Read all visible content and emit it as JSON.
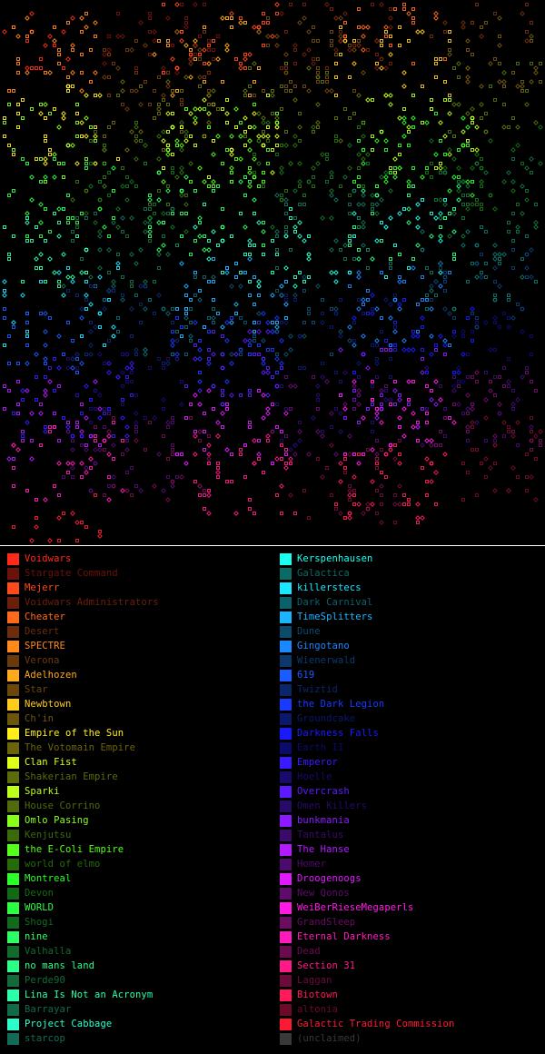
{
  "map": {
    "background": "#000000"
  },
  "legend": {
    "left": [
      {
        "label": "Voidwars",
        "color": "#ff2a1a",
        "dim": false
      },
      {
        "label": "Stargate Command",
        "color": "#ff2a1a",
        "dim": true
      },
      {
        "label": "Mejerr",
        "color": "#ff4a1a",
        "dim": false
      },
      {
        "label": "Voidwars Administrators",
        "color": "#ff4a1a",
        "dim": true
      },
      {
        "label": "Cheater",
        "color": "#ff6a1a",
        "dim": false
      },
      {
        "label": "Desert",
        "color": "#ff6a1a",
        "dim": true
      },
      {
        "label": "SPECTRE",
        "color": "#ff8a1a",
        "dim": false
      },
      {
        "label": "Verona",
        "color": "#ff8a1a",
        "dim": true
      },
      {
        "label": "Adelhozen",
        "color": "#ffaa1a",
        "dim": false
      },
      {
        "label": "Star",
        "color": "#ffaa1a",
        "dim": true
      },
      {
        "label": "Newbtown",
        "color": "#ffcc1a",
        "dim": false
      },
      {
        "label": "Ch'in",
        "color": "#ffcc1a",
        "dim": true
      },
      {
        "label": "Empire of the Sun",
        "color": "#ffee1a",
        "dim": false
      },
      {
        "label": "The Votomain Empire",
        "color": "#ffee1a",
        "dim": true
      },
      {
        "label": "Clan Fist",
        "color": "#ddff1a",
        "dim": false
      },
      {
        "label": "Shakerian Empire",
        "color": "#ddff1a",
        "dim": true
      },
      {
        "label": "Sparki",
        "color": "#bbff1a",
        "dim": false
      },
      {
        "label": "House Corrino",
        "color": "#bbff1a",
        "dim": true
      },
      {
        "label": "Omlo Pasing",
        "color": "#88ff1a",
        "dim": false
      },
      {
        "label": "Kenjutsu",
        "color": "#88ff1a",
        "dim": true
      },
      {
        "label": "the E-Coli Empire",
        "color": "#55ff1a",
        "dim": false
      },
      {
        "label": "world of elmo",
        "color": "#55ff1a",
        "dim": true
      },
      {
        "label": "Montreal",
        "color": "#2aff2a",
        "dim": false
      },
      {
        "label": "Devon",
        "color": "#2aff2a",
        "dim": true
      },
      {
        "label": "WORLD",
        "color": "#2aff44",
        "dim": false
      },
      {
        "label": "Shogi",
        "color": "#2aff44",
        "dim": true
      },
      {
        "label": "nine",
        "color": "#2aff66",
        "dim": false
      },
      {
        "label": "Valhalla",
        "color": "#2aff66",
        "dim": true
      },
      {
        "label": "no mans land",
        "color": "#2aff88",
        "dim": false
      },
      {
        "label": "Perde90",
        "color": "#2aff88",
        "dim": true
      },
      {
        "label": "Lina Is Not an Acronym",
        "color": "#2affaa",
        "dim": false
      },
      {
        "label": "Barrayar",
        "color": "#2affaa",
        "dim": true
      },
      {
        "label": "Project Cabbage",
        "color": "#2affcc",
        "dim": false
      },
      {
        "label": "starcop",
        "color": "#2affcc",
        "dim": true
      }
    ],
    "right": [
      {
        "label": "Kerspenhausen",
        "color": "#1affee",
        "dim": false
      },
      {
        "label": "Galactica",
        "color": "#1affee",
        "dim": true
      },
      {
        "label": "killerstecs",
        "color": "#1ae6ff",
        "dim": false
      },
      {
        "label": "Dark Carnival",
        "color": "#1ae6ff",
        "dim": true
      },
      {
        "label": "TimeSplitters",
        "color": "#1ab4ff",
        "dim": false
      },
      {
        "label": "Dune",
        "color": "#1ab4ff",
        "dim": true
      },
      {
        "label": "Gingotano",
        "color": "#1a88ff",
        "dim": false
      },
      {
        "label": "Wienerwald",
        "color": "#1a88ff",
        "dim": true
      },
      {
        "label": "619",
        "color": "#1a5cff",
        "dim": false
      },
      {
        "label": "Twiztid",
        "color": "#1a5cff",
        "dim": true
      },
      {
        "label": "the Dark Legion",
        "color": "#1a3aff",
        "dim": false
      },
      {
        "label": "Groundcake",
        "color": "#1a3aff",
        "dim": true
      },
      {
        "label": "Darkness Falls",
        "color": "#1a1aff",
        "dim": false
      },
      {
        "label": "Earth II",
        "color": "#1a1aff",
        "dim": true
      },
      {
        "label": "Emperor",
        "color": "#3a1aff",
        "dim": false
      },
      {
        "label": "Hoelle",
        "color": "#3a1aff",
        "dim": true
      },
      {
        "label": "Overcrash",
        "color": "#5c1aff",
        "dim": false
      },
      {
        "label": "Omen Killers",
        "color": "#5c1aff",
        "dim": true
      },
      {
        "label": "bunkmania",
        "color": "#8a1aff",
        "dim": false
      },
      {
        "label": "Tantalus",
        "color": "#8a1aff",
        "dim": true
      },
      {
        "label": "The Hanse",
        "color": "#b41aff",
        "dim": false
      },
      {
        "label": "Homer",
        "color": "#b41aff",
        "dim": true
      },
      {
        "label": "Droogenoogs",
        "color": "#e01aff",
        "dim": false
      },
      {
        "label": "New Qonos",
        "color": "#e01aff",
        "dim": true
      },
      {
        "label": "WeiBerRieseMegaperls",
        "color": "#ff1ae6",
        "dim": false
      },
      {
        "label": "GrandSleep",
        "color": "#ff1ae6",
        "dim": true
      },
      {
        "label": "Eternal Darkness",
        "color": "#ff1abb",
        "dim": false
      },
      {
        "label": "Dead",
        "color": "#ff1abb",
        "dim": true
      },
      {
        "label": "Section 31",
        "color": "#ff1a88",
        "dim": false
      },
      {
        "label": "Laggan",
        "color": "#ff1a88",
        "dim": true
      },
      {
        "label": "Biotown",
        "color": "#ff1a5c",
        "dim": false
      },
      {
        "label": "altonia",
        "color": "#ff1a5c",
        "dim": true
      },
      {
        "label": "Galactic Trading Commission",
        "color": "#ff1a33",
        "dim": false
      },
      {
        "label": "(unclaimed)",
        "color": "#888888",
        "dim": true
      }
    ]
  }
}
